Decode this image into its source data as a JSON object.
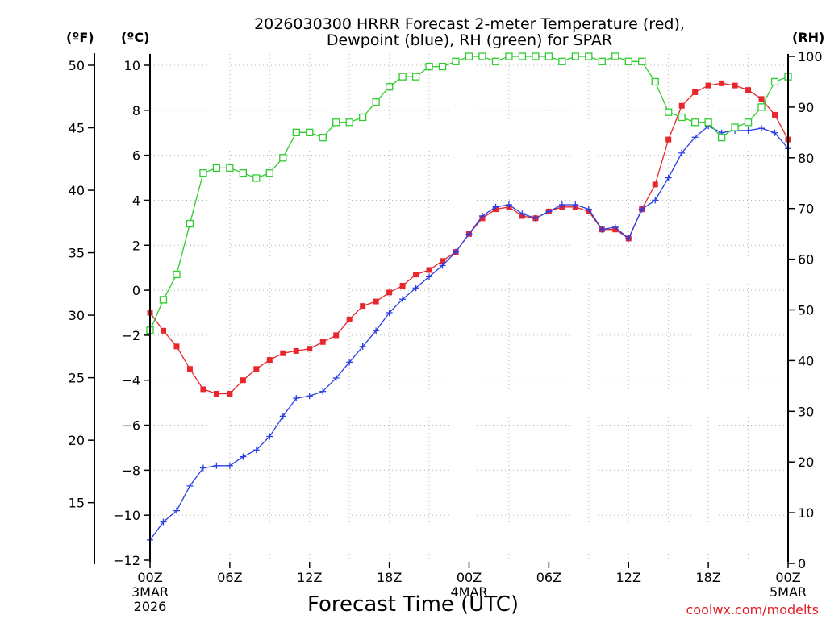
{
  "chart_data": {
    "type": "line",
    "title": [
      "2026030300 HRRR Forecast 2-meter Temperature (red),",
      "Dewpoint (blue), RH (green) for SPAR"
    ],
    "xlabel": "Forecast Time (UTC)",
    "credit": "coolwx.com/modelts",
    "units": {
      "fahrenheit": "(ºF)",
      "celsius": "(ºC)",
      "rh": "(RH)"
    },
    "x_hours": [
      0,
      1,
      2,
      3,
      4,
      5,
      6,
      7,
      8,
      9,
      10,
      11,
      12,
      13,
      14,
      15,
      16,
      17,
      18,
      19,
      20,
      21,
      22,
      23,
      24,
      25,
      26,
      27,
      28,
      29,
      30,
      31,
      32,
      33,
      34,
      35,
      36,
      37,
      38,
      39,
      40,
      41,
      42,
      43,
      44,
      45,
      46,
      47,
      48
    ],
    "x_range": [
      0,
      48
    ],
    "x_ticks": [
      {
        "hour": 0,
        "label": "00Z",
        "sub": [
          "3MAR",
          "2026"
        ]
      },
      {
        "hour": 6,
        "label": "06Z",
        "sub": []
      },
      {
        "hour": 12,
        "label": "12Z",
        "sub": []
      },
      {
        "hour": 18,
        "label": "18Z",
        "sub": []
      },
      {
        "hour": 24,
        "label": "00Z",
        "sub": [
          "4MAR"
        ]
      },
      {
        "hour": 30,
        "label": "06Z",
        "sub": []
      },
      {
        "hour": 36,
        "label": "12Z",
        "sub": []
      },
      {
        "hour": 42,
        "label": "18Z",
        "sub": []
      },
      {
        "hour": 48,
        "label": "00Z",
        "sub": [
          "5MAR"
        ]
      }
    ],
    "y_celsius": {
      "range": [
        -12,
        10.5
      ],
      "ticks": [
        "10",
        "8",
        "6",
        "4",
        "2",
        "0",
        "−2",
        "−4",
        "−6",
        "−8",
        "−10",
        "−12"
      ],
      "tick_values": [
        10,
        8,
        6,
        4,
        2,
        0,
        -2,
        -4,
        -6,
        -8,
        -10,
        -12
      ]
    },
    "y_fahrenheit": {
      "ticks": [
        "50",
        "45",
        "40",
        "35",
        "30",
        "25",
        "20",
        "15"
      ],
      "tick_values": [
        50,
        45,
        40,
        35,
        30,
        25,
        20,
        15
      ]
    },
    "y_rh": {
      "range": [
        0,
        100
      ],
      "ticks": [
        "100",
        "90",
        "80",
        "70",
        "60",
        "50",
        "40",
        "30",
        "20",
        "10",
        "0"
      ],
      "tick_values": [
        100,
        90,
        80,
        70,
        60,
        50,
        40,
        30,
        20,
        10,
        0
      ]
    },
    "grid": "dotted",
    "series": [
      {
        "name": "Temperature (red)",
        "axis": "celsius",
        "color": "#e8262b",
        "marker": "filled-square",
        "values": [
          -1.0,
          -1.8,
          -2.5,
          -3.5,
          -4.4,
          -4.6,
          -4.6,
          -4.0,
          -3.5,
          -3.1,
          -2.8,
          -2.7,
          -2.6,
          -2.3,
          -2.0,
          -1.3,
          -0.7,
          -0.5,
          -0.1,
          0.2,
          0.7,
          0.9,
          1.3,
          1.7,
          2.5,
          3.2,
          3.6,
          3.7,
          3.3,
          3.2,
          3.5,
          3.7,
          3.7,
          3.5,
          2.7,
          2.7,
          2.3,
          3.6,
          4.7,
          6.7,
          8.2,
          8.8,
          9.1,
          9.2,
          9.1,
          8.9,
          8.5,
          7.8,
          6.7
        ]
      },
      {
        "name": "Dewpoint (blue)",
        "axis": "celsius",
        "color": "#2b3ee6",
        "marker": "plus",
        "values": [
          -11.1,
          -10.3,
          -9.8,
          -8.7,
          -7.9,
          -7.8,
          -7.8,
          -7.4,
          -7.1,
          -6.5,
          -5.6,
          -4.8,
          -4.7,
          -4.5,
          -3.9,
          -3.2,
          -2.5,
          -1.8,
          -1.0,
          -0.4,
          0.1,
          0.6,
          1.1,
          1.7,
          2.5,
          3.3,
          3.7,
          3.8,
          3.4,
          3.2,
          3.5,
          3.8,
          3.8,
          3.6,
          2.7,
          2.8,
          2.3,
          3.6,
          4.0,
          5.0,
          6.1,
          6.8,
          7.3,
          7.0,
          7.1,
          7.1,
          7.2,
          7.0,
          6.3
        ]
      },
      {
        "name": "RH (green)",
        "axis": "rh",
        "color": "#2ecc2e",
        "marker": "open-square",
        "values": [
          46,
          52,
          57,
          67,
          77,
          78,
          78,
          77,
          76,
          77,
          80,
          85,
          85,
          84,
          87,
          87,
          88,
          91,
          94,
          96,
          96,
          98,
          98,
          99,
          100,
          100,
          99,
          100,
          100,
          100,
          100,
          99,
          100,
          100,
          99,
          100,
          99,
          99,
          95,
          89,
          88,
          87,
          87,
          84,
          86,
          87,
          90,
          95,
          96
        ]
      }
    ]
  }
}
